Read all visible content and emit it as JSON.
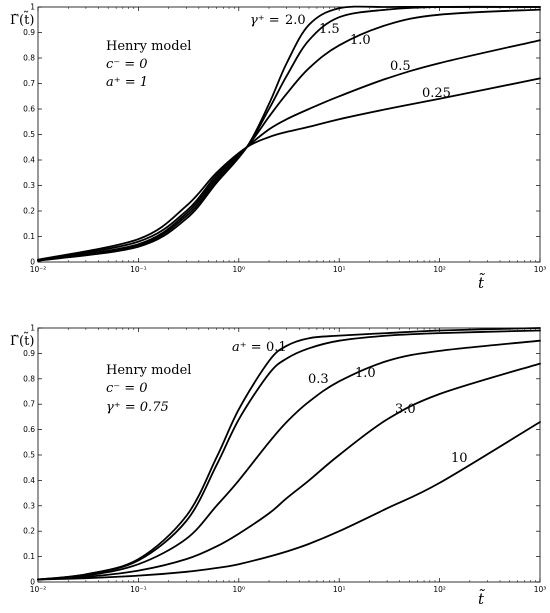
{
  "chart_data": [
    {
      "type": "line",
      "ylabel": "Γ̃(t̃)",
      "xlabel": "t̃",
      "xscale": "log",
      "xlim": [
        0.01,
        1000
      ],
      "ylim": [
        0,
        1
      ],
      "x_ticks": [
        "10⁻²",
        "10⁻¹",
        "10⁰",
        "10¹",
        "10²",
        "10³"
      ],
      "y_ticks": [
        "0",
        "0.1",
        "0.2",
        "0.3",
        "0.4",
        "0.5",
        "0.6",
        "0.7",
        "0.8",
        "0.9",
        "1"
      ],
      "annotation": [
        "Henry model",
        "c⁻ = 0",
        "a⁺ = 1"
      ],
      "curve_label_prefix": "γ⁺ = ",
      "series": [
        {
          "label": "2.0",
          "x": [
            0.01,
            0.1,
            0.3,
            0.6,
            1.2,
            2,
            3,
            5,
            10,
            30,
            100,
            1000
          ],
          "y": [
            0.005,
            0.06,
            0.17,
            0.31,
            0.45,
            0.62,
            0.78,
            0.93,
            0.995,
            1.0,
            1.0,
            1.0
          ]
        },
        {
          "label": "1.5",
          "x": [
            0.01,
            0.1,
            0.3,
            0.6,
            1.2,
            2,
            3,
            5,
            10,
            30,
            100,
            1000
          ],
          "y": [
            0.006,
            0.065,
            0.18,
            0.32,
            0.45,
            0.6,
            0.73,
            0.87,
            0.96,
            0.99,
            1.0,
            1.0
          ]
        },
        {
          "label": "1.0",
          "x": [
            0.01,
            0.1,
            0.3,
            0.6,
            1.2,
            2,
            3,
            5,
            10,
            30,
            100,
            1000
          ],
          "y": [
            0.007,
            0.07,
            0.19,
            0.33,
            0.45,
            0.57,
            0.66,
            0.76,
            0.85,
            0.93,
            0.97,
            0.99
          ]
        },
        {
          "label": "0.5",
          "x": [
            0.01,
            0.1,
            0.3,
            0.6,
            1.2,
            2,
            3,
            5,
            10,
            30,
            100,
            1000
          ],
          "y": [
            0.008,
            0.08,
            0.2,
            0.34,
            0.45,
            0.52,
            0.56,
            0.6,
            0.65,
            0.72,
            0.78,
            0.87
          ]
        },
        {
          "label": "0.25",
          "x": [
            0.01,
            0.1,
            0.3,
            0.6,
            1.2,
            2,
            3,
            5,
            10,
            30,
            100,
            1000
          ],
          "y": [
            0.009,
            0.09,
            0.22,
            0.35,
            0.45,
            0.49,
            0.51,
            0.53,
            0.56,
            0.6,
            0.64,
            0.72
          ]
        }
      ]
    },
    {
      "type": "line",
      "ylabel": "Γ̃(t̃)",
      "xlabel": "t̃",
      "xscale": "log",
      "xlim": [
        0.01,
        1000
      ],
      "ylim": [
        0,
        1
      ],
      "x_ticks": [
        "10⁻²",
        "10⁻¹",
        "10⁰",
        "10¹",
        "10²",
        "10³"
      ],
      "y_ticks": [
        "0",
        "0.1",
        "0.2",
        "0.3",
        "0.4",
        "0.5",
        "0.6",
        "0.7",
        "0.8",
        "0.9",
        "1"
      ],
      "annotation": [
        "Henry model",
        "c⁻ = 0",
        "γ⁺ = 0.75"
      ],
      "curve_label_prefix": "a⁺ = ",
      "series": [
        {
          "label": "0.1",
          "x": [
            0.01,
            0.03,
            0.1,
            0.3,
            0.6,
            1,
            2,
            3,
            5,
            10,
            30,
            100,
            1000
          ],
          "y": [
            0.01,
            0.03,
            0.09,
            0.26,
            0.49,
            0.68,
            0.87,
            0.93,
            0.96,
            0.97,
            0.98,
            0.99,
            1.0
          ]
        },
        {
          "label": "0.3",
          "x": [
            0.01,
            0.03,
            0.1,
            0.3,
            0.6,
            1,
            2,
            3,
            5,
            10,
            30,
            100,
            1000
          ],
          "y": [
            0.01,
            0.03,
            0.085,
            0.24,
            0.46,
            0.64,
            0.82,
            0.88,
            0.92,
            0.95,
            0.97,
            0.98,
            0.99
          ]
        },
        {
          "label": "1.0",
          "x": [
            0.01,
            0.03,
            0.1,
            0.3,
            0.6,
            1,
            2,
            3,
            5,
            10,
            30,
            100,
            1000
          ],
          "y": [
            0.01,
            0.025,
            0.07,
            0.17,
            0.3,
            0.4,
            0.55,
            0.63,
            0.71,
            0.79,
            0.87,
            0.91,
            0.95
          ]
        },
        {
          "label": "3.0",
          "x": [
            0.01,
            0.03,
            0.1,
            0.3,
            0.6,
            1,
            2,
            3,
            5,
            10,
            30,
            100,
            1000
          ],
          "y": [
            0.01,
            0.02,
            0.045,
            0.09,
            0.14,
            0.19,
            0.27,
            0.33,
            0.4,
            0.5,
            0.64,
            0.74,
            0.86
          ]
        },
        {
          "label": "10",
          "x": [
            0.01,
            0.03,
            0.1,
            0.3,
            0.6,
            1,
            2,
            3,
            5,
            10,
            30,
            100,
            1000
          ],
          "y": [
            0.01,
            0.015,
            0.025,
            0.04,
            0.055,
            0.07,
            0.1,
            0.12,
            0.15,
            0.2,
            0.29,
            0.39,
            0.63
          ]
        }
      ]
    }
  ]
}
